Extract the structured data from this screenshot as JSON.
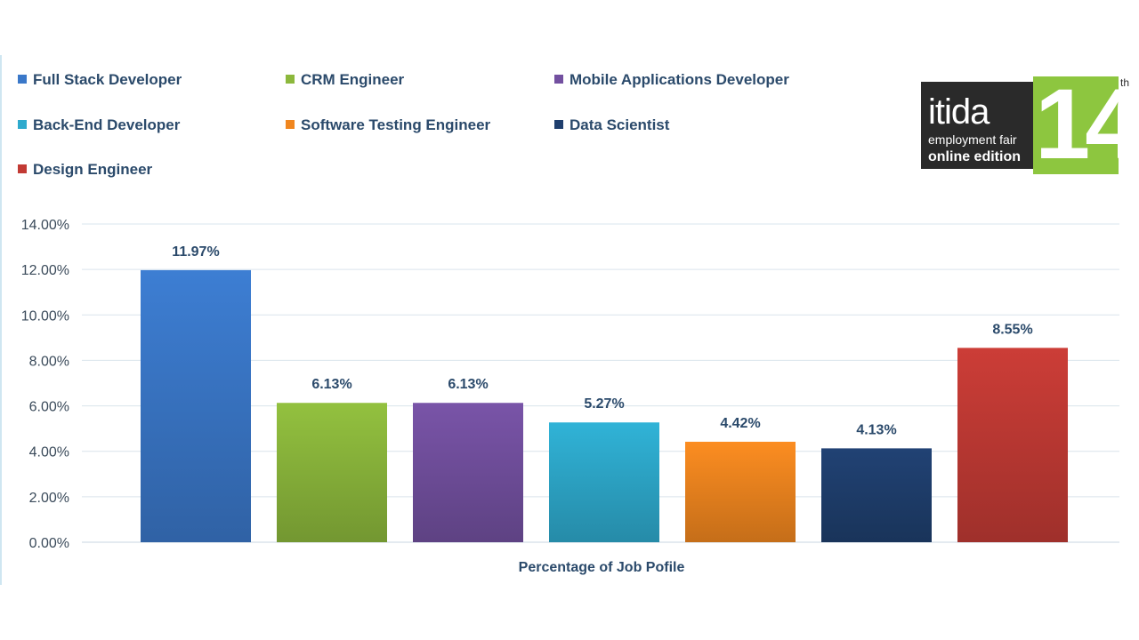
{
  "chart_data": {
    "type": "bar",
    "title": "",
    "xlabel": "Percentage of Job Pofile",
    "ylabel": "",
    "ylim": [
      0,
      14
    ],
    "y_ticks": [
      "0.00%",
      "2.00%",
      "4.00%",
      "6.00%",
      "8.00%",
      "10.00%",
      "12.00%",
      "14.00%"
    ],
    "grid": true,
    "legend_placement": "top",
    "series": [
      {
        "name": "Full Stack Developer",
        "value": 11.97,
        "label": "11.97%",
        "color": "#3a78c9"
      },
      {
        "name": "CRM Engineer",
        "value": 6.13,
        "label": "6.13%",
        "color": "#8cb83c"
      },
      {
        "name": "Mobile Applications Developer",
        "value": 6.13,
        "label": "6.13%",
        "color": "#7350a0"
      },
      {
        "name": "Back-End Developer",
        "value": 5.27,
        "label": "5.27%",
        "color": "#2eaacd"
      },
      {
        "name": "Software Testing Engineer",
        "value": 4.42,
        "label": "4.42%",
        "color": "#f0861f"
      },
      {
        "name": "Data Scientist",
        "value": 4.13,
        "label": "4.13%",
        "color": "#1f3f6e"
      },
      {
        "name": "Design Engineer",
        "value": 8.55,
        "label": "8.55%",
        "color": "#c23a34"
      }
    ]
  },
  "logo": {
    "word": "itida",
    "line1": "employment fair",
    "line2": "online edition",
    "number": "14",
    "suffix": "th"
  }
}
